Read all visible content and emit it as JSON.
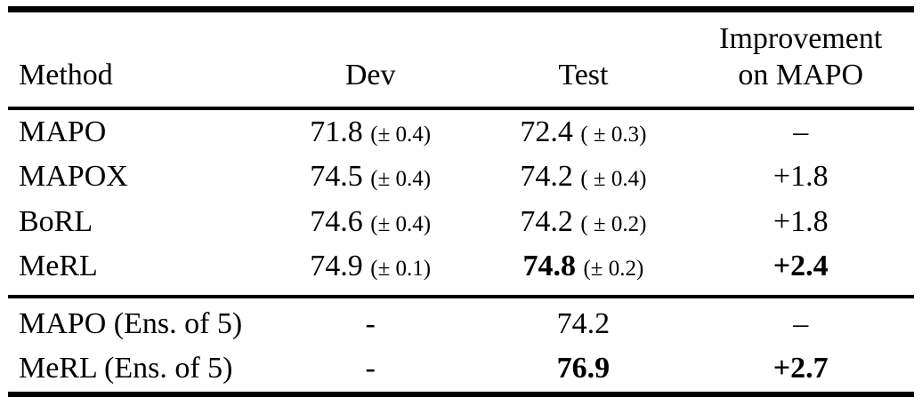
{
  "table": {
    "headers": {
      "method": "Method",
      "dev": "Dev",
      "test": "Test",
      "improvement_line1": "Improvement",
      "improvement_line2": "on MAPO"
    },
    "rows": [
      {
        "method": "MAPO",
        "dev": "71.8",
        "dev_pm": "(± 0.4)",
        "test": "72.4",
        "test_pm": "( ± 0.3)",
        "improvement": "–"
      },
      {
        "method": "MAPOX",
        "dev": "74.5",
        "dev_pm": "(± 0.4)",
        "test": "74.2",
        "test_pm": "( ± 0.4)",
        "improvement": "+1.8"
      },
      {
        "method": "BoRL",
        "dev": "74.6",
        "dev_pm": "(± 0.4)",
        "test": "74.2",
        "test_pm": "( ± 0.2)",
        "improvement": "+1.8"
      },
      {
        "method": "MeRL",
        "dev": "74.9",
        "dev_pm": "(± 0.1)",
        "test": "74.8",
        "test_pm": "(± 0.2)",
        "improvement": "+2.4"
      }
    ],
    "ensemble_rows": [
      {
        "method": "MAPO (Ens. of 5)",
        "dev": "-",
        "test": "74.2",
        "improvement": "–"
      },
      {
        "method": "MeRL (Ens. of 5)",
        "dev": "-",
        "test": "76.9",
        "improvement": "+2.7"
      }
    ]
  }
}
